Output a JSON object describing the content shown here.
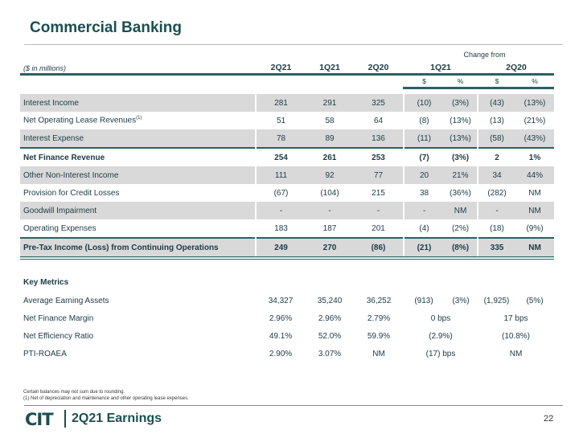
{
  "title": "Commercial Banking",
  "header": {
    "units": "($ in millions)",
    "periods": [
      "2Q21",
      "1Q21",
      "2Q20"
    ],
    "change_from": "Change from",
    "change_groups": [
      "1Q21",
      "2Q20"
    ],
    "sub": [
      "$",
      "%",
      "$",
      "%"
    ]
  },
  "rows": [
    {
      "label": "Interest Income",
      "values": [
        "281",
        "291",
        "325",
        "(10)",
        "(3%)",
        "(43)",
        "(13%)"
      ]
    },
    {
      "label": "Net Operating Lease Revenues",
      "sup": "(1)",
      "values": [
        "51",
        "58",
        "64",
        "(8)",
        "(13%)",
        "(13)",
        "(21%)"
      ]
    },
    {
      "label": "Interest Expense",
      "values": [
        "78",
        "89",
        "136",
        "(11)",
        "(13%)",
        "(58)",
        "(43%)"
      ]
    },
    {
      "label": "Net Finance Revenue",
      "values": [
        "254",
        "261",
        "253",
        "(7)",
        "(3%)",
        "2",
        "1%"
      ]
    },
    {
      "label": "Other Non-Interest Income",
      "values": [
        "111",
        "92",
        "77",
        "20",
        "21%",
        "34",
        "44%"
      ]
    },
    {
      "label": "Provision for Credit Losses",
      "values": [
        "(67)",
        "(104)",
        "215",
        "38",
        "(36%)",
        "(282)",
        "NM"
      ]
    },
    {
      "label": "Goodwill Impairment",
      "values": [
        "-",
        "-",
        "-",
        "-",
        "NM",
        "-",
        "NM"
      ]
    },
    {
      "label": "Operating Expenses",
      "values": [
        "183",
        "187",
        "201",
        "(4)",
        "(2%)",
        "(18)",
        "(9%)"
      ]
    },
    {
      "label": "Pre-Tax Income (Loss) from Continuing Operations",
      "values": [
        "249",
        "270",
        "(86)",
        "(21)",
        "(8%)",
        "335",
        "NM"
      ]
    }
  ],
  "key_metrics": {
    "heading": "Key Metrics",
    "rows": [
      {
        "label": "Average Earning Assets",
        "values": [
          "34,327",
          "35,240",
          "36,252",
          "(913)",
          "(3%)",
          "(1,925)",
          "(5%)"
        ]
      },
      {
        "label": "Net Finance Margin",
        "values": [
          "2.96%",
          "2.96%",
          "2.79%"
        ],
        "changes": [
          "0 bps",
          "17 bps"
        ]
      },
      {
        "label": "Net Efficiency Ratio",
        "values": [
          "49.1%",
          "52.0%",
          "59.9%"
        ],
        "changes": [
          "(2.9%)",
          "(10.8%)"
        ]
      },
      {
        "label": "PTI-ROAEA",
        "values": [
          "2.90%",
          "3.07%",
          "NM"
        ],
        "changes": [
          "(17) bps",
          "NM"
        ]
      }
    ]
  },
  "footnotes": [
    "Certain balances may not sum due to rounding.",
    "(1)   Net of depreciation and maintenance and other operating lease expenses."
  ],
  "footer": {
    "logo": "CIT",
    "label": "2Q21 Earnings",
    "page": "22"
  },
  "colors": {
    "brand": "#1b4f52",
    "rule": "#2e5f63",
    "shade": "#d9d9d9"
  }
}
